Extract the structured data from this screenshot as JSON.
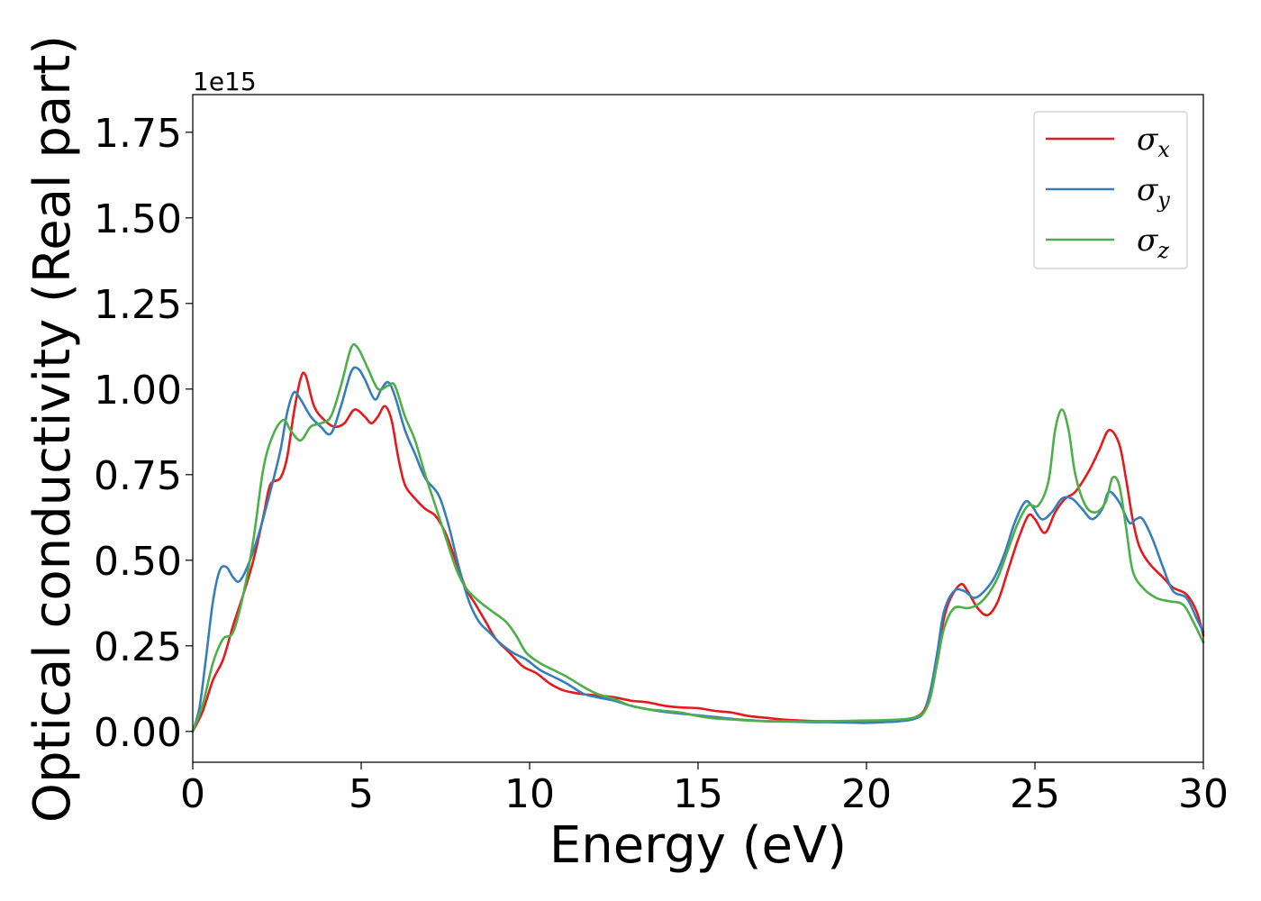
{
  "chart_data": {
    "type": "line",
    "title": "",
    "xlabel": "Energy (eV)",
    "ylabel": "Optical conductivity (Real part)",
    "y_offset_text": "1e15",
    "xlim": [
      0,
      30
    ],
    "ylim": [
      -0.09,
      1.86
    ],
    "x_ticks": [
      0,
      5,
      10,
      15,
      20,
      25,
      30
    ],
    "x_tick_labels": [
      "0",
      "5",
      "10",
      "15",
      "20",
      "25",
      "30"
    ],
    "y_ticks": [
      0.0,
      0.25,
      0.5,
      0.75,
      1.0,
      1.25,
      1.5,
      1.75
    ],
    "y_tick_labels": [
      "0.00",
      "0.25",
      "0.50",
      "0.75",
      "1.00",
      "1.25",
      "1.50",
      "1.75"
    ],
    "grid": false,
    "legend_position": "top-right",
    "series": [
      {
        "name": "σx",
        "legend_base": "σ",
        "legend_sub": "x",
        "color": "#e41a1c",
        "points": [
          [
            0,
            0
          ],
          [
            0.3,
            0.06
          ],
          [
            0.6,
            0.15
          ],
          [
            0.9,
            0.21
          ],
          [
            1.2,
            0.31
          ],
          [
            1.5,
            0.4
          ],
          [
            1.8,
            0.5
          ],
          [
            2.1,
            0.63
          ],
          [
            2.3,
            0.72
          ],
          [
            2.6,
            0.74
          ],
          [
            2.8,
            0.8
          ],
          [
            3.0,
            0.93
          ],
          [
            3.2,
            1.03
          ],
          [
            3.35,
            1.04
          ],
          [
            3.6,
            0.95
          ],
          [
            3.9,
            0.91
          ],
          [
            4.2,
            0.89
          ],
          [
            4.5,
            0.9
          ],
          [
            4.8,
            0.94
          ],
          [
            5.1,
            0.92
          ],
          [
            5.3,
            0.9
          ],
          [
            5.5,
            0.92
          ],
          [
            5.7,
            0.95
          ],
          [
            5.9,
            0.91
          ],
          [
            6.1,
            0.8
          ],
          [
            6.3,
            0.72
          ],
          [
            6.6,
            0.68
          ],
          [
            6.9,
            0.65
          ],
          [
            7.2,
            0.63
          ],
          [
            7.5,
            0.58
          ],
          [
            7.8,
            0.5
          ],
          [
            8.1,
            0.42
          ],
          [
            8.4,
            0.37
          ],
          [
            8.7,
            0.32
          ],
          [
            9.0,
            0.27
          ],
          [
            9.4,
            0.23
          ],
          [
            9.8,
            0.19
          ],
          [
            10.2,
            0.17
          ],
          [
            10.6,
            0.14
          ],
          [
            11.0,
            0.12
          ],
          [
            11.5,
            0.11
          ],
          [
            12.0,
            0.105
          ],
          [
            12.5,
            0.1
          ],
          [
            13.0,
            0.09
          ],
          [
            13.5,
            0.085
          ],
          [
            14.0,
            0.075
          ],
          [
            14.5,
            0.07
          ],
          [
            15.0,
            0.068
          ],
          [
            15.5,
            0.06
          ],
          [
            16.0,
            0.055
          ],
          [
            16.5,
            0.045
          ],
          [
            17.0,
            0.04
          ],
          [
            17.5,
            0.035
          ],
          [
            18.0,
            0.032
          ],
          [
            18.5,
            0.03
          ],
          [
            19.0,
            0.03
          ],
          [
            19.5,
            0.03
          ],
          [
            20.0,
            0.03
          ],
          [
            20.5,
            0.031
          ],
          [
            21.0,
            0.033
          ],
          [
            21.4,
            0.04
          ],
          [
            21.7,
            0.06
          ],
          [
            21.9,
            0.12
          ],
          [
            22.1,
            0.22
          ],
          [
            22.3,
            0.33
          ],
          [
            22.5,
            0.39
          ],
          [
            22.8,
            0.43
          ],
          [
            23.0,
            0.41
          ],
          [
            23.3,
            0.36
          ],
          [
            23.6,
            0.34
          ],
          [
            23.9,
            0.38
          ],
          [
            24.2,
            0.47
          ],
          [
            24.5,
            0.56
          ],
          [
            24.8,
            0.63
          ],
          [
            25.0,
            0.62
          ],
          [
            25.3,
            0.58
          ],
          [
            25.6,
            0.64
          ],
          [
            25.9,
            0.68
          ],
          [
            26.2,
            0.7
          ],
          [
            26.6,
            0.76
          ],
          [
            26.9,
            0.82
          ],
          [
            27.2,
            0.88
          ],
          [
            27.5,
            0.84
          ],
          [
            27.7,
            0.74
          ],
          [
            27.9,
            0.62
          ],
          [
            28.1,
            0.54
          ],
          [
            28.4,
            0.49
          ],
          [
            28.8,
            0.45
          ],
          [
            29.1,
            0.42
          ],
          [
            29.5,
            0.4
          ],
          [
            29.8,
            0.35
          ],
          [
            30.0,
            0.28
          ]
        ]
      },
      {
        "name": "σy",
        "legend_base": "σ",
        "legend_sub": "y",
        "color": "#377eb8",
        "points": [
          [
            0,
            0
          ],
          [
            0.2,
            0.07
          ],
          [
            0.4,
            0.22
          ],
          [
            0.6,
            0.38
          ],
          [
            0.8,
            0.47
          ],
          [
            1.0,
            0.48
          ],
          [
            1.2,
            0.45
          ],
          [
            1.4,
            0.44
          ],
          [
            1.7,
            0.5
          ],
          [
            2.0,
            0.59
          ],
          [
            2.3,
            0.7
          ],
          [
            2.6,
            0.82
          ],
          [
            2.8,
            0.93
          ],
          [
            3.0,
            0.99
          ],
          [
            3.2,
            0.97
          ],
          [
            3.5,
            0.92
          ],
          [
            3.8,
            0.89
          ],
          [
            4.1,
            0.87
          ],
          [
            4.4,
            0.95
          ],
          [
            4.7,
            1.05
          ],
          [
            4.9,
            1.06
          ],
          [
            5.1,
            1.03
          ],
          [
            5.4,
            0.97
          ],
          [
            5.6,
            1.0
          ],
          [
            5.8,
            1.02
          ],
          [
            6.0,
            0.98
          ],
          [
            6.3,
            0.88
          ],
          [
            6.6,
            0.81
          ],
          [
            6.9,
            0.74
          ],
          [
            7.3,
            0.69
          ],
          [
            7.6,
            0.6
          ],
          [
            7.9,
            0.48
          ],
          [
            8.2,
            0.38
          ],
          [
            8.5,
            0.32
          ],
          [
            8.8,
            0.29
          ],
          [
            9.1,
            0.26
          ],
          [
            9.5,
            0.23
          ],
          [
            9.9,
            0.21
          ],
          [
            10.3,
            0.18
          ],
          [
            10.7,
            0.16
          ],
          [
            11.1,
            0.14
          ],
          [
            11.6,
            0.11
          ],
          [
            12.0,
            0.1
          ],
          [
            12.5,
            0.09
          ],
          [
            13.0,
            0.075
          ],
          [
            13.5,
            0.065
          ],
          [
            14.0,
            0.057
          ],
          [
            14.5,
            0.052
          ],
          [
            15.0,
            0.047
          ],
          [
            15.5,
            0.042
          ],
          [
            16.0,
            0.037
          ],
          [
            16.5,
            0.033
          ],
          [
            17.0,
            0.03
          ],
          [
            17.5,
            0.029
          ],
          [
            18.0,
            0.028
          ],
          [
            18.5,
            0.027
          ],
          [
            19.0,
            0.027
          ],
          [
            19.5,
            0.026
          ],
          [
            20.0,
            0.025
          ],
          [
            20.5,
            0.027
          ],
          [
            21.0,
            0.03
          ],
          [
            21.4,
            0.036
          ],
          [
            21.7,
            0.055
          ],
          [
            21.9,
            0.12
          ],
          [
            22.1,
            0.23
          ],
          [
            22.3,
            0.35
          ],
          [
            22.6,
            0.41
          ],
          [
            22.9,
            0.41
          ],
          [
            23.2,
            0.39
          ],
          [
            23.5,
            0.41
          ],
          [
            23.8,
            0.45
          ],
          [
            24.1,
            0.52
          ],
          [
            24.4,
            0.61
          ],
          [
            24.7,
            0.67
          ],
          [
            24.9,
            0.66
          ],
          [
            25.2,
            0.62
          ],
          [
            25.5,
            0.64
          ],
          [
            25.8,
            0.68
          ],
          [
            26.1,
            0.68
          ],
          [
            26.4,
            0.65
          ],
          [
            26.7,
            0.62
          ],
          [
            27.0,
            0.65
          ],
          [
            27.2,
            0.7
          ],
          [
            27.5,
            0.67
          ],
          [
            27.8,
            0.61
          ],
          [
            28.0,
            0.62
          ],
          [
            28.2,
            0.62
          ],
          [
            28.5,
            0.56
          ],
          [
            28.8,
            0.48
          ],
          [
            29.1,
            0.41
          ],
          [
            29.5,
            0.39
          ],
          [
            29.8,
            0.33
          ],
          [
            30.0,
            0.29
          ]
        ]
      },
      {
        "name": "σz",
        "legend_base": "σ",
        "legend_sub": "z",
        "color": "#4daf4a",
        "points": [
          [
            0,
            0
          ],
          [
            0.3,
            0.08
          ],
          [
            0.6,
            0.2
          ],
          [
            0.9,
            0.27
          ],
          [
            1.2,
            0.29
          ],
          [
            1.5,
            0.4
          ],
          [
            1.8,
            0.56
          ],
          [
            2.1,
            0.77
          ],
          [
            2.4,
            0.87
          ],
          [
            2.7,
            0.91
          ],
          [
            2.9,
            0.88
          ],
          [
            3.2,
            0.85
          ],
          [
            3.5,
            0.89
          ],
          [
            3.8,
            0.9
          ],
          [
            4.1,
            0.92
          ],
          [
            4.4,
            1.01
          ],
          [
            4.7,
            1.12
          ],
          [
            4.9,
            1.12
          ],
          [
            5.2,
            1.06
          ],
          [
            5.5,
            1.0
          ],
          [
            5.8,
            1.01
          ],
          [
            6.0,
            1.01
          ],
          [
            6.3,
            0.92
          ],
          [
            6.6,
            0.85
          ],
          [
            6.9,
            0.75
          ],
          [
            7.2,
            0.66
          ],
          [
            7.5,
            0.57
          ],
          [
            7.8,
            0.48
          ],
          [
            8.1,
            0.42
          ],
          [
            8.5,
            0.38
          ],
          [
            8.9,
            0.35
          ],
          [
            9.3,
            0.32
          ],
          [
            9.6,
            0.28
          ],
          [
            9.9,
            0.23
          ],
          [
            10.3,
            0.2
          ],
          [
            10.7,
            0.18
          ],
          [
            11.1,
            0.16
          ],
          [
            11.6,
            0.13
          ],
          [
            12.0,
            0.11
          ],
          [
            12.5,
            0.095
          ],
          [
            13.0,
            0.075
          ],
          [
            13.5,
            0.065
          ],
          [
            14.0,
            0.06
          ],
          [
            14.5,
            0.055
          ],
          [
            15.0,
            0.045
          ],
          [
            15.5,
            0.038
          ],
          [
            16.0,
            0.035
          ],
          [
            16.5,
            0.032
          ],
          [
            17.0,
            0.03
          ],
          [
            17.5,
            0.03
          ],
          [
            18.0,
            0.029
          ],
          [
            18.5,
            0.029
          ],
          [
            19.0,
            0.03
          ],
          [
            19.5,
            0.031
          ],
          [
            20.0,
            0.032
          ],
          [
            20.5,
            0.033
          ],
          [
            21.0,
            0.035
          ],
          [
            21.4,
            0.04
          ],
          [
            21.7,
            0.055
          ],
          [
            21.9,
            0.1
          ],
          [
            22.1,
            0.2
          ],
          [
            22.3,
            0.3
          ],
          [
            22.6,
            0.36
          ],
          [
            23.0,
            0.36
          ],
          [
            23.3,
            0.37
          ],
          [
            23.6,
            0.4
          ],
          [
            23.9,
            0.45
          ],
          [
            24.2,
            0.53
          ],
          [
            24.5,
            0.61
          ],
          [
            24.8,
            0.66
          ],
          [
            25.1,
            0.66
          ],
          [
            25.4,
            0.73
          ],
          [
            25.6,
            0.88
          ],
          [
            25.8,
            0.94
          ],
          [
            26.0,
            0.88
          ],
          [
            26.2,
            0.75
          ],
          [
            26.5,
            0.66
          ],
          [
            26.8,
            0.64
          ],
          [
            27.1,
            0.67
          ],
          [
            27.3,
            0.74
          ],
          [
            27.5,
            0.72
          ],
          [
            27.7,
            0.6
          ],
          [
            27.9,
            0.47
          ],
          [
            28.2,
            0.42
          ],
          [
            28.6,
            0.39
          ],
          [
            29.0,
            0.38
          ],
          [
            29.4,
            0.37
          ],
          [
            29.7,
            0.32
          ],
          [
            30.0,
            0.26
          ]
        ]
      }
    ]
  }
}
